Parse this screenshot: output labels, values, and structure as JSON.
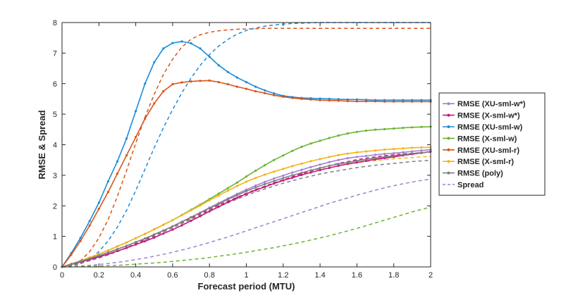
{
  "chart_data": {
    "type": "line",
    "title": "",
    "xlabel": "Forecast period (MTU)",
    "ylabel": "RMSE & Spread",
    "xlim": [
      0,
      2
    ],
    "ylim": [
      0,
      8
    ],
    "xticks": [
      "0",
      "0.2",
      "0.4",
      "0.6",
      "0.8",
      "1",
      "1.2",
      "1.4",
      "1.6",
      "1.8",
      "2"
    ],
    "yticks": [
      "0",
      "1",
      "2",
      "3",
      "4",
      "5",
      "6",
      "7",
      "8"
    ],
    "grid": false,
    "legend_position": "right",
    "x": [
      0,
      0.05,
      0.1,
      0.15,
      0.2,
      0.25,
      0.3,
      0.35,
      0.4,
      0.45,
      0.5,
      0.55,
      0.6,
      0.65,
      0.7,
      0.75,
      0.8,
      0.85,
      0.9,
      0.95,
      1.0,
      1.05,
      1.1,
      1.15,
      1.2,
      1.25,
      1.3,
      1.35,
      1.4,
      1.45,
      1.5,
      1.55,
      1.6,
      1.65,
      1.7,
      1.75,
      1.8,
      1.85,
      1.9,
      1.95,
      2.0
    ],
    "series": [
      {
        "name": "RMSE (XU-sml-w*)",
        "color": "#A67FD3",
        "style": "solid",
        "marker": "dot",
        "values": [
          0,
          0.09,
          0.18,
          0.27,
          0.37,
          0.47,
          0.58,
          0.69,
          0.81,
          0.93,
          1.06,
          1.19,
          1.33,
          1.48,
          1.63,
          1.78,
          1.94,
          2.09,
          2.24,
          2.39,
          2.53,
          2.66,
          2.78,
          2.89,
          2.99,
          3.09,
          3.18,
          3.27,
          3.35,
          3.43,
          3.5,
          3.56,
          3.6,
          3.63,
          3.67,
          3.7,
          3.72,
          3.75,
          3.78,
          3.81,
          3.84
        ]
      },
      {
        "name": "RMSE (X-sml-w*)",
        "color": "#C2187E",
        "style": "solid",
        "marker": "dot",
        "values": [
          0,
          0.08,
          0.16,
          0.24,
          0.33,
          0.42,
          0.52,
          0.62,
          0.73,
          0.84,
          0.96,
          1.09,
          1.22,
          1.36,
          1.51,
          1.66,
          1.82,
          1.97,
          2.12,
          2.26,
          2.39,
          2.51,
          2.62,
          2.73,
          2.83,
          2.92,
          3.01,
          3.09,
          3.17,
          3.24,
          3.31,
          3.37,
          3.42,
          3.47,
          3.52,
          3.56,
          3.6,
          3.65,
          3.69,
          3.73,
          3.78
        ]
      },
      {
        "name": "RMSE (XU-sml-w)",
        "color": "#1A8DDB",
        "style": "solid",
        "marker": "dot",
        "values": [
          0,
          0.45,
          0.95,
          1.5,
          2.1,
          2.8,
          3.45,
          4.2,
          5.1,
          6.0,
          6.7,
          7.15,
          7.33,
          7.38,
          7.32,
          7.15,
          6.88,
          6.6,
          6.38,
          6.2,
          6.05,
          5.9,
          5.78,
          5.68,
          5.6,
          5.56,
          5.53,
          5.52,
          5.51,
          5.5,
          5.49,
          5.48,
          5.48,
          5.47,
          5.46,
          5.46,
          5.46,
          5.46,
          5.46,
          5.46,
          5.46
        ]
      },
      {
        "name": "RMSE (X-sml-w)",
        "color": "#6AB630",
        "style": "solid",
        "marker": "dot",
        "values": [
          0,
          0.1,
          0.2,
          0.3,
          0.42,
          0.54,
          0.67,
          0.8,
          0.94,
          1.08,
          1.23,
          1.38,
          1.53,
          1.7,
          1.87,
          2.04,
          2.22,
          2.4,
          2.58,
          2.76,
          2.96,
          3.15,
          3.33,
          3.5,
          3.65,
          3.8,
          3.93,
          4.04,
          4.13,
          4.22,
          4.3,
          4.37,
          4.42,
          4.46,
          4.49,
          4.51,
          4.53,
          4.55,
          4.57,
          4.58,
          4.59
        ]
      },
      {
        "name": "RMSE (XU-sml-r)",
        "color": "#D95319",
        "style": "solid",
        "marker": "dot",
        "values": [
          0,
          0.4,
          0.85,
          1.35,
          1.9,
          2.45,
          3.05,
          3.65,
          4.25,
          4.85,
          5.35,
          5.75,
          5.98,
          6.04,
          6.07,
          6.09,
          6.1,
          6.05,
          5.98,
          5.9,
          5.83,
          5.75,
          5.69,
          5.62,
          5.57,
          5.53,
          5.5,
          5.48,
          5.46,
          5.45,
          5.44,
          5.43,
          5.42,
          5.42,
          5.42,
          5.41,
          5.41,
          5.41,
          5.41,
          5.41,
          5.41
        ]
      },
      {
        "name": "RMSE (X-sml-r)",
        "color": "#F5B41C",
        "style": "solid",
        "marker": "dot",
        "values": [
          0,
          0.1,
          0.2,
          0.31,
          0.42,
          0.54,
          0.67,
          0.8,
          0.94,
          1.08,
          1.23,
          1.38,
          1.53,
          1.69,
          1.85,
          2.01,
          2.18,
          2.34,
          2.5,
          2.65,
          2.79,
          2.91,
          3.02,
          3.12,
          3.21,
          3.3,
          3.38,
          3.46,
          3.53,
          3.6,
          3.66,
          3.71,
          3.75,
          3.78,
          3.81,
          3.84,
          3.86,
          3.88,
          3.9,
          3.91,
          3.92
        ]
      },
      {
        "name": "RMSE (poly)",
        "color": "#7F7F7F",
        "style": "solid",
        "marker": "dot",
        "values": [
          0,
          0.09,
          0.18,
          0.27,
          0.37,
          0.47,
          0.58,
          0.69,
          0.81,
          0.93,
          1.06,
          1.19,
          1.33,
          1.47,
          1.62,
          1.77,
          1.92,
          2.06,
          2.21,
          2.35,
          2.48,
          2.6,
          2.71,
          2.81,
          2.91,
          3.0,
          3.08,
          3.16,
          3.24,
          3.31,
          3.37,
          3.42,
          3.47,
          3.52,
          3.56,
          3.6,
          3.64,
          3.67,
          3.71,
          3.74,
          3.77
        ]
      }
    ],
    "spread": {
      "name": "Spread",
      "legend_color": "#A67FD3",
      "style": "dashed",
      "curves": [
        {
          "color": "#D95319",
          "values": [
            0,
            0.05,
            0.2,
            0.5,
            0.95,
            1.55,
            2.3,
            3.15,
            4.05,
            4.9,
            5.65,
            6.3,
            6.8,
            7.2,
            7.45,
            7.6,
            7.68,
            7.73,
            7.76,
            7.78,
            7.79,
            7.8,
            7.81,
            7.81,
            7.81,
            7.81,
            7.81,
            7.81,
            7.81,
            7.81,
            7.81,
            7.81,
            7.81,
            7.81,
            7.81,
            7.81,
            7.81,
            7.81,
            7.81,
            7.81,
            7.81
          ]
        },
        {
          "color": "#1A8DDB",
          "values": [
            0,
            0.03,
            0.1,
            0.25,
            0.5,
            0.85,
            1.3,
            1.85,
            2.5,
            3.2,
            3.9,
            4.55,
            5.15,
            5.7,
            6.18,
            6.6,
            6.95,
            7.23,
            7.45,
            7.62,
            7.74,
            7.82,
            7.88,
            7.92,
            7.95,
            7.97,
            7.98,
            7.99,
            8.0,
            8.0,
            8.0,
            8.0,
            8.0,
            8.0,
            8.0,
            8.0,
            8.0,
            8.0,
            8.0,
            8.0,
            8.0
          ]
        },
        {
          "color": "#F5B41C",
          "values": [
            0,
            0.06,
            0.13,
            0.21,
            0.3,
            0.4,
            0.51,
            0.63,
            0.76,
            0.9,
            1.04,
            1.18,
            1.32,
            1.46,
            1.6,
            1.74,
            1.88,
            2.02,
            2.15,
            2.28,
            2.41,
            2.53,
            2.64,
            2.75,
            2.85,
            2.94,
            3.03,
            3.11,
            3.18,
            3.25,
            3.31,
            3.36,
            3.41,
            3.45,
            3.48,
            3.51,
            3.54,
            3.56,
            3.58,
            3.6,
            3.62
          ]
        },
        {
          "color": "#C2187E",
          "values": [
            0,
            0.06,
            0.13,
            0.21,
            0.3,
            0.4,
            0.51,
            0.63,
            0.76,
            0.9,
            1.04,
            1.18,
            1.32,
            1.46,
            1.6,
            1.74,
            1.88,
            2.02,
            2.15,
            2.28,
            2.41,
            2.53,
            2.64,
            2.75,
            2.85,
            2.95,
            3.05,
            3.14,
            3.23,
            3.31,
            3.39,
            3.45,
            3.51,
            3.56,
            3.6,
            3.64,
            3.67,
            3.7,
            3.72,
            3.74,
            3.75
          ]
        },
        {
          "color": "#7F7F7F",
          "values": [
            0,
            0.05,
            0.12,
            0.2,
            0.29,
            0.39,
            0.5,
            0.62,
            0.74,
            0.87,
            1.0,
            1.14,
            1.28,
            1.42,
            1.56,
            1.7,
            1.84,
            1.97,
            2.1,
            2.22,
            2.34,
            2.45,
            2.55,
            2.65,
            2.74,
            2.82,
            2.9,
            2.97,
            3.04,
            3.1,
            3.15,
            3.2,
            3.25,
            3.29,
            3.33,
            3.36,
            3.39,
            3.42,
            3.45,
            3.47,
            3.49
          ]
        },
        {
          "color": "#A67FD3",
          "values": [
            0,
            0.01,
            0.03,
            0.05,
            0.08,
            0.11,
            0.15,
            0.19,
            0.24,
            0.29,
            0.35,
            0.41,
            0.48,
            0.55,
            0.63,
            0.71,
            0.8,
            0.89,
            0.98,
            1.08,
            1.18,
            1.28,
            1.38,
            1.48,
            1.58,
            1.68,
            1.78,
            1.88,
            1.98,
            2.08,
            2.17,
            2.26,
            2.35,
            2.43,
            2.51,
            2.59,
            2.66,
            2.72,
            2.78,
            2.83,
            2.87
          ]
        },
        {
          "color": "#6AB630",
          "values": [
            0,
            0.0,
            0.01,
            0.02,
            0.03,
            0.04,
            0.05,
            0.07,
            0.09,
            0.11,
            0.13,
            0.15,
            0.18,
            0.21,
            0.24,
            0.27,
            0.31,
            0.35,
            0.39,
            0.43,
            0.48,
            0.53,
            0.58,
            0.63,
            0.69,
            0.75,
            0.81,
            0.88,
            0.95,
            1.02,
            1.1,
            1.18,
            1.26,
            1.35,
            1.44,
            1.53,
            1.62,
            1.71,
            1.8,
            1.88,
            1.96
          ]
        }
      ]
    }
  }
}
